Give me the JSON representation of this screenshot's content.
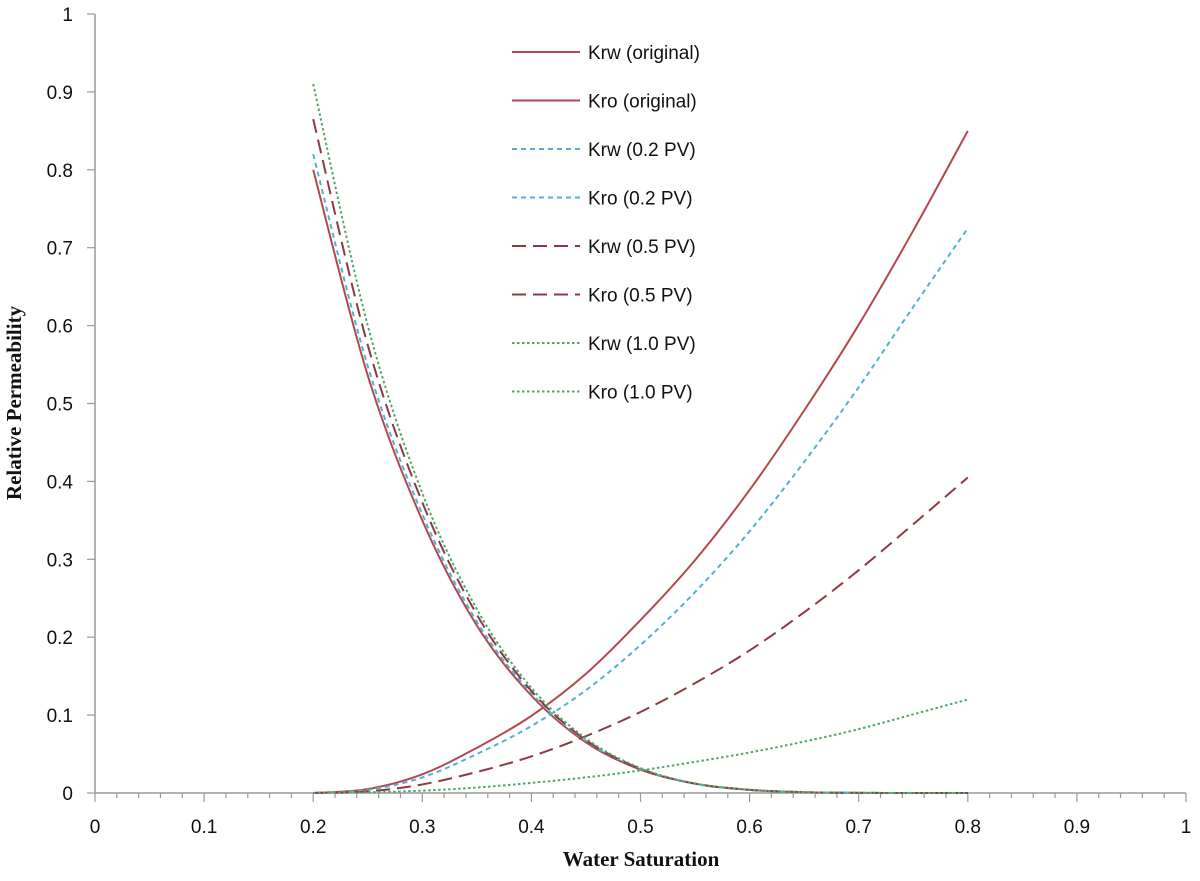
{
  "chart_data": {
    "type": "line",
    "title": "",
    "xlabel": "Water Saturation",
    "ylabel": "Relative Permeability",
    "xlim": [
      0,
      1
    ],
    "ylim": [
      0,
      1
    ],
    "x_ticks": [
      "0",
      "0.1",
      "0.2",
      "0.3",
      "0.4",
      "0.5",
      "0.6",
      "0.7",
      "0.8",
      "0.9",
      "1"
    ],
    "y_ticks": [
      "0",
      "0.1",
      "0.2",
      "0.3",
      "0.4",
      "0.5",
      "0.6",
      "0.7",
      "0.8",
      "0.9",
      "1"
    ],
    "grid": false,
    "legend_position": "top-center",
    "x": [
      0.2,
      0.25,
      0.3,
      0.35,
      0.4,
      0.45,
      0.5,
      0.55,
      0.6,
      0.65,
      0.7,
      0.75,
      0.8
    ],
    "series": [
      {
        "name": "Krw (original)",
        "color": "#b5474d",
        "dash": "solid",
        "values": [
          0,
          0.005,
          0.024,
          0.058,
          0.099,
          0.153,
          0.222,
          0.299,
          0.389,
          0.491,
          0.601,
          0.722,
          0.85
        ]
      },
      {
        "name": "Kro (original)",
        "color": "#b5474d",
        "dash": "solid",
        "values": [
          0.8,
          0.536,
          0.35,
          0.215,
          0.125,
          0.065,
          0.03,
          0.012,
          0.004,
          0.001,
          0.0002,
          0,
          0
        ]
      },
      {
        "name": "Krw (0.2 PV)",
        "color": "#4fb3cf",
        "dash": "short",
        "values": [
          0,
          0.004,
          0.02,
          0.05,
          0.086,
          0.132,
          0.19,
          0.258,
          0.336,
          0.425,
          0.521,
          0.624,
          0.725
        ]
      },
      {
        "name": "Kro (0.2 PV)",
        "color": "#4fb3cf",
        "dash": "short",
        "values": [
          0.82,
          0.548,
          0.358,
          0.22,
          0.128,
          0.067,
          0.031,
          0.012,
          0.004,
          0.001,
          0.0002,
          0,
          0
        ]
      },
      {
        "name": "Krw (0.5 PV)",
        "color": "#8c3a44",
        "dash": "long",
        "values": [
          0,
          0.002,
          0.011,
          0.027,
          0.047,
          0.073,
          0.104,
          0.141,
          0.183,
          0.232,
          0.286,
          0.345,
          0.405
        ]
      },
      {
        "name": "Kro (0.5 PV)",
        "color": "#8c3a44",
        "dash": "long",
        "values": [
          0.865,
          0.575,
          0.373,
          0.229,
          0.131,
          0.068,
          0.031,
          0.012,
          0.004,
          0.001,
          0.0002,
          0,
          0
        ]
      },
      {
        "name": "Krw (1.0 PV)",
        "color": "#4fa86a",
        "dash": "dot",
        "values": [
          0,
          0.001,
          0.003,
          0.007,
          0.013,
          0.02,
          0.029,
          0.04,
          0.052,
          0.066,
          0.082,
          0.101,
          0.12
        ]
      },
      {
        "name": "Kro (1.0 PV)",
        "color": "#4fa86a",
        "dash": "dot",
        "values": [
          0.91,
          0.6,
          0.385,
          0.236,
          0.135,
          0.07,
          0.032,
          0.012,
          0.004,
          0.001,
          0.0002,
          0,
          0
        ]
      }
    ]
  }
}
